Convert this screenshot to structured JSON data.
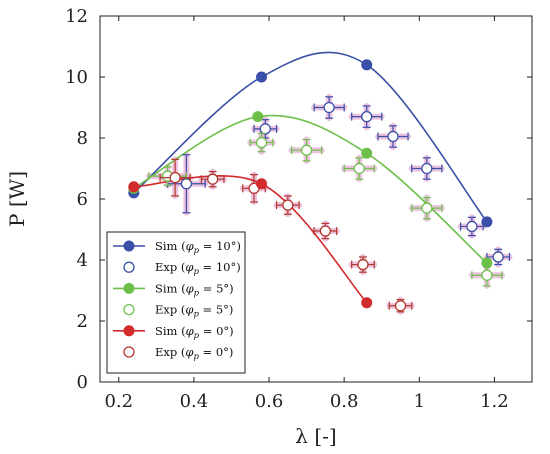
{
  "chart_data": {
    "type": "scatter",
    "xlabel": "λ [-]",
    "ylabel": "P [W]",
    "xlim": [
      0.15,
      1.3
    ],
    "ylim": [
      0,
      12
    ],
    "xticks": [
      0.2,
      0.4,
      0.6,
      0.8,
      1.0,
      1.2
    ],
    "xtick_labels": [
      "0.2",
      "0.4",
      "0.6",
      "0.8",
      "1",
      "1.2"
    ],
    "yticks": [
      0,
      2,
      4,
      6,
      8,
      10,
      12
    ],
    "ytick_labels": [
      "0",
      "2",
      "4",
      "6",
      "8",
      "10",
      "12"
    ],
    "grid": false,
    "legend_position": "bottom-left",
    "series": [
      {
        "name": "Sim (φp = 10°)",
        "legend_label": "Sim (",
        "legend_value": "10°",
        "kind": "sim",
        "color": "#3a4fa8",
        "points": [
          {
            "x": 0.24,
            "y": 6.2
          },
          {
            "x": 0.58,
            "y": 10.0
          },
          {
            "x": 0.86,
            "y": 10.4
          },
          {
            "x": 1.18,
            "y": 5.25
          }
        ]
      },
      {
        "name": "Exp (φp = 10°)",
        "legend_label": "Exp (",
        "legend_value": "10°",
        "kind": "exp",
        "color": "#3a4fa8",
        "points": [
          {
            "x": 0.38,
            "y": 6.5,
            "xerr": 0.05,
            "yerr": 0.95
          },
          {
            "x": 0.59,
            "y": 8.3,
            "xerr": 0.03,
            "yerr": 0.3
          },
          {
            "x": 0.76,
            "y": 9.0,
            "xerr": 0.04,
            "yerr": 0.35
          },
          {
            "x": 0.86,
            "y": 8.7,
            "xerr": 0.04,
            "yerr": 0.35
          },
          {
            "x": 0.93,
            "y": 8.05,
            "xerr": 0.04,
            "yerr": 0.35
          },
          {
            "x": 1.02,
            "y": 7.0,
            "xerr": 0.04,
            "yerr": 0.35
          },
          {
            "x": 1.14,
            "y": 5.1,
            "xerr": 0.03,
            "yerr": 0.3
          },
          {
            "x": 1.21,
            "y": 4.1,
            "xerr": 0.03,
            "yerr": 0.25
          }
        ]
      },
      {
        "name": "Sim (φp = 5°)",
        "legend_label": "Sim (",
        "legend_value": "5°",
        "kind": "sim",
        "color": "#6cc04a",
        "points": [
          {
            "x": 0.24,
            "y": 6.35
          },
          {
            "x": 0.57,
            "y": 8.7
          },
          {
            "x": 0.86,
            "y": 7.5
          },
          {
            "x": 1.18,
            "y": 3.9
          }
        ]
      },
      {
        "name": "Exp (φp = 5°)",
        "legend_label": "Exp (",
        "legend_value": "5°",
        "kind": "exp",
        "color": "#6cc04a",
        "points": [
          {
            "x": 0.33,
            "y": 6.75,
            "xerr": 0.05,
            "yerr": 0.3
          },
          {
            "x": 0.58,
            "y": 7.85,
            "xerr": 0.03,
            "yerr": 0.3
          },
          {
            "x": 0.7,
            "y": 7.6,
            "xerr": 0.04,
            "yerr": 0.35
          },
          {
            "x": 0.84,
            "y": 7.0,
            "xerr": 0.04,
            "yerr": 0.35
          },
          {
            "x": 1.02,
            "y": 5.7,
            "xerr": 0.04,
            "yerr": 0.35
          },
          {
            "x": 1.18,
            "y": 3.5,
            "xerr": 0.04,
            "yerr": 0.35
          }
        ]
      },
      {
        "name": "Sim (φp = 0°)",
        "legend_label": "Sim (",
        "legend_value": "0°",
        "kind": "sim",
        "color": "#d22b2b",
        "points": [
          {
            "x": 0.24,
            "y": 6.4
          },
          {
            "x": 0.58,
            "y": 6.5
          },
          {
            "x": 0.86,
            "y": 2.6
          }
        ]
      },
      {
        "name": "Exp (φp = 0°)",
        "legend_label": "Exp (",
        "legend_value": "0°",
        "kind": "exp",
        "color": "#b2382e",
        "points": [
          {
            "x": 0.35,
            "y": 6.7,
            "xerr": 0.04,
            "yerr": 0.6
          },
          {
            "x": 0.45,
            "y": 6.65,
            "xerr": 0.03,
            "yerr": 0.25
          },
          {
            "x": 0.56,
            "y": 6.35,
            "xerr": 0.03,
            "yerr": 0.45
          },
          {
            "x": 0.65,
            "y": 5.8,
            "xerr": 0.03,
            "yerr": 0.3
          },
          {
            "x": 0.75,
            "y": 4.95,
            "xerr": 0.03,
            "yerr": 0.25
          },
          {
            "x": 0.85,
            "y": 3.85,
            "xerr": 0.03,
            "yerr": 0.25
          },
          {
            "x": 0.95,
            "y": 2.5,
            "xerr": 0.03,
            "yerr": 0.2
          }
        ]
      }
    ],
    "error_bar_color": "#e8b3d6"
  }
}
